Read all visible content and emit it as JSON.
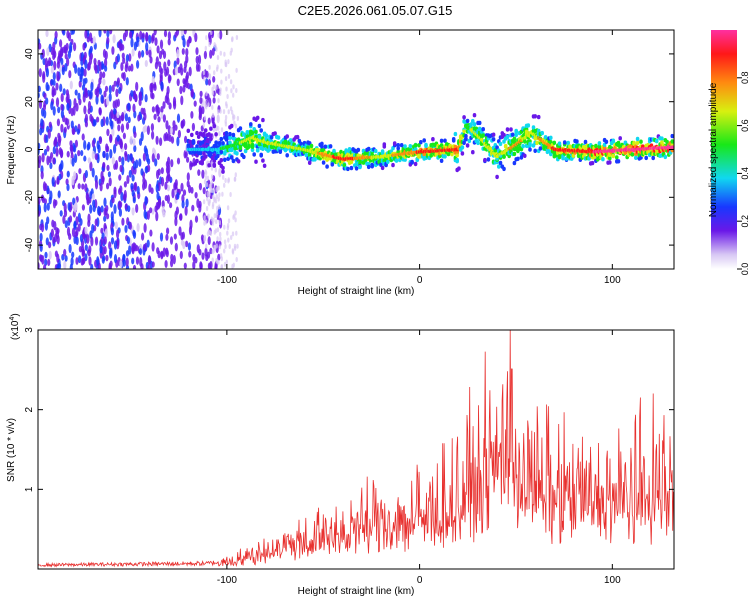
{
  "title": "C2E5.2026.061.05.07.G15",
  "chart_data": [
    {
      "type": "heatmap",
      "xlabel": "Height of straight line (km)",
      "ylabel": "Frequency (Hz)",
      "xlim": [
        -198,
        132
      ],
      "ylim": [
        -50,
        50
      ],
      "xticks": [
        -100,
        0,
        100
      ],
      "xtick_labels": [
        "-100",
        "0",
        "100"
      ],
      "yticks": [
        -40,
        -20,
        0,
        20,
        40
      ],
      "ytick_labels": [
        "-40",
        "-20",
        "0",
        "20",
        "40"
      ],
      "colorbar": {
        "label": "Normalized spectral amplitude",
        "range": [
          0,
          1
        ],
        "ticks": [
          0.0,
          0.2,
          0.4,
          0.6,
          0.8
        ],
        "tick_labels": [
          "0.0",
          "0.2",
          "0.4",
          "0.6",
          "0.8"
        ]
      },
      "ridge": {
        "description_points_x": [
          -105,
          -95,
          -87,
          -80,
          -60,
          -40,
          -20,
          0,
          20,
          24,
          30,
          40,
          50,
          58,
          70,
          90,
          110,
          132
        ],
        "frequency_hz": [
          0,
          2,
          5,
          3,
          0,
          -4,
          -3,
          -1,
          0,
          10,
          6,
          -3,
          2,
          7,
          0,
          -1,
          0,
          1
        ],
        "amplitude": [
          0.35,
          0.5,
          0.6,
          0.55,
          0.55,
          0.85,
          0.6,
          0.8,
          0.8,
          0.5,
          0.55,
          0.6,
          0.7,
          0.6,
          0.8,
          0.9,
          0.95,
          0.95
        ]
      }
    },
    {
      "type": "line",
      "xlabel": "Height of straight line (km)",
      "ylabel": "SNR (10 * v/v)",
      "y_scale_label": "(x10",
      "y_scale_exp": "4",
      "xlim": [
        -198,
        132
      ],
      "ylim": [
        0,
        3
      ],
      "xticks": [
        -100,
        0,
        100
      ],
      "xtick_labels": [
        "-100",
        "0",
        "100"
      ],
      "yticks": [
        1,
        2,
        3
      ],
      "ytick_labels": [
        "1",
        "2",
        "3"
      ],
      "series": [
        {
          "name": "SNR",
          "color": "#e8302e",
          "envelope_x": [
            -198,
            -110,
            -100,
            -90,
            -80,
            -70,
            -60,
            -50,
            -40,
            -30,
            -20,
            -10,
            0,
            10,
            20,
            30,
            40,
            45,
            50,
            60,
            70,
            80,
            90,
            100,
            110,
            120,
            132
          ],
          "envelope_y": [
            0.05,
            0.07,
            0.1,
            0.15,
            0.25,
            0.35,
            0.4,
            0.45,
            0.55,
            0.6,
            0.65,
            0.7,
            0.75,
            0.85,
            1.0,
            1.2,
            1.5,
            1.8,
            1.5,
            1.2,
            1.1,
            1.05,
            1.0,
            1.05,
            1.1,
            1.15,
            1.2
          ],
          "peak_x": 47,
          "peak_y": 3.0
        }
      ]
    }
  ]
}
